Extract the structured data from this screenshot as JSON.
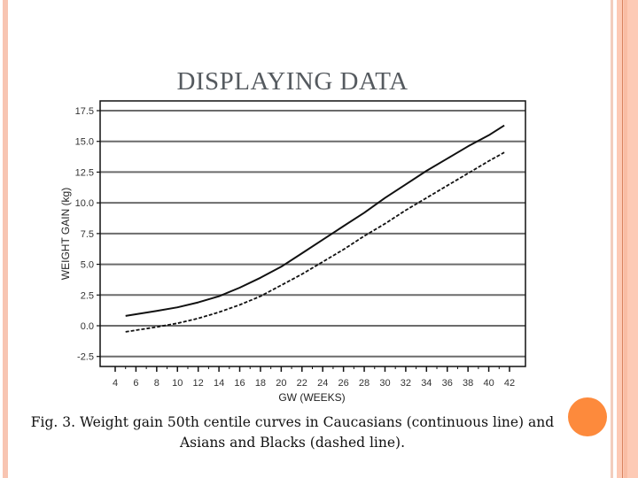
{
  "slide": {
    "title": "DISPLAYING DATA",
    "caption_line1": "Fig. 3. Weight gain 50th centile curves in Caucasians (continuous line) and",
    "caption_line2": "Asians and Blacks (dashed line).",
    "colors": {
      "border_accent": "#f8c5b2",
      "border_dark_line": "#d9835e",
      "orange_dot": "#fd8a3c",
      "title_text": "#555a5f"
    }
  },
  "chart_data": {
    "type": "line",
    "title": "",
    "xlabel": "GW (WEEKS)",
    "ylabel": "WEIGHT GAIN (kg)",
    "xlim": [
      3,
      44
    ],
    "ylim": [
      -3.3,
      18.5
    ],
    "x_ticks": [
      4,
      6,
      8,
      10,
      12,
      14,
      16,
      18,
      20,
      22,
      24,
      26,
      28,
      30,
      32,
      34,
      36,
      38,
      40,
      42
    ],
    "y_ticks": [
      "17.5",
      "15.0",
      "12.5",
      "10.0",
      "7.5",
      "5.0",
      "2.5",
      "0.0",
      "-2.5"
    ],
    "grid": "horizontal",
    "legend": "none (described in caption)",
    "series": [
      {
        "name": "Caucasians (continuous line)",
        "style": "solid",
        "x": [
          5,
          8,
          10,
          12,
          14,
          16,
          18,
          20,
          22,
          24,
          26,
          28,
          30,
          32,
          34,
          36,
          38,
          40,
          41.5
        ],
        "values": [
          0.8,
          1.2,
          1.5,
          1.9,
          2.4,
          3.1,
          3.9,
          4.8,
          5.9,
          7.0,
          8.1,
          9.2,
          10.4,
          11.5,
          12.6,
          13.6,
          14.6,
          15.5,
          16.3
        ]
      },
      {
        "name": "Asians and Blacks (dashed line)",
        "style": "dashed",
        "x": [
          5,
          8,
          10,
          12,
          14,
          16,
          18,
          20,
          22,
          24,
          26,
          28,
          30,
          32,
          34,
          36,
          38,
          40,
          41.5
        ],
        "values": [
          -0.5,
          -0.1,
          0.2,
          0.6,
          1.1,
          1.7,
          2.4,
          3.3,
          4.2,
          5.2,
          6.2,
          7.3,
          8.3,
          9.4,
          10.4,
          11.4,
          12.4,
          13.4,
          14.1
        ]
      }
    ]
  }
}
